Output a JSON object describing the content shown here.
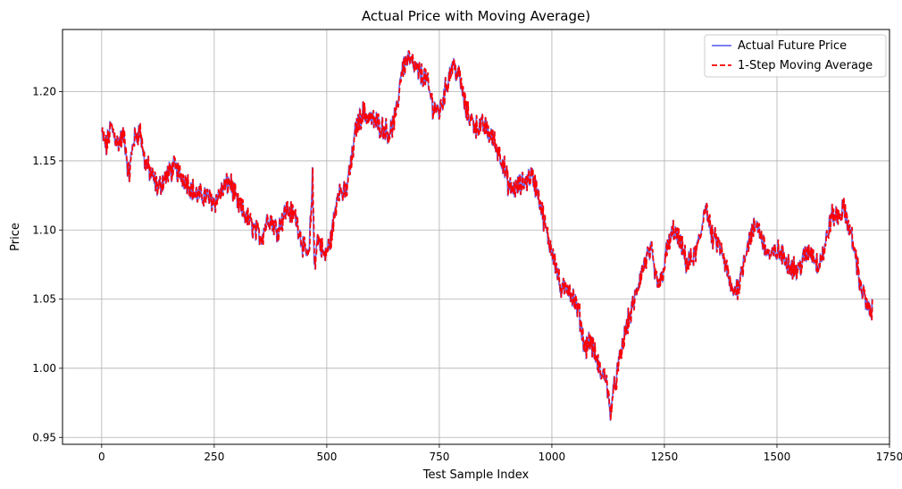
{
  "chart_data": {
    "type": "line",
    "title": "Actual Price with Moving Average)",
    "xlabel": "Test Sample Index",
    "ylabel": "Price",
    "xlim": [
      -87,
      1750
    ],
    "ylim": [
      0.945,
      1.245
    ],
    "xticks": [
      0,
      250,
      500,
      750,
      1000,
      1250,
      1500,
      1750
    ],
    "yticks": [
      0.95,
      1.0,
      1.05,
      1.1,
      1.15,
      1.2
    ],
    "grid": true,
    "legend_position": "top-right",
    "series": [
      {
        "name": "Actual Future Price",
        "color": "#6b6bf0",
        "style": "solid",
        "anchors": [
          [
            0,
            1.17
          ],
          [
            10,
            1.16
          ],
          [
            20,
            1.175
          ],
          [
            35,
            1.163
          ],
          [
            50,
            1.168
          ],
          [
            60,
            1.138
          ],
          [
            70,
            1.165
          ],
          [
            85,
            1.172
          ],
          [
            95,
            1.15
          ],
          [
            110,
            1.14
          ],
          [
            125,
            1.13
          ],
          [
            140,
            1.138
          ],
          [
            160,
            1.145
          ],
          [
            175,
            1.14
          ],
          [
            190,
            1.135
          ],
          [
            210,
            1.125
          ],
          [
            230,
            1.125
          ],
          [
            250,
            1.12
          ],
          [
            270,
            1.13
          ],
          [
            285,
            1.135
          ],
          [
            300,
            1.12
          ],
          [
            320,
            1.11
          ],
          [
            340,
            1.1
          ],
          [
            355,
            1.095
          ],
          [
            370,
            1.11
          ],
          [
            390,
            1.1
          ],
          [
            410,
            1.115
          ],
          [
            430,
            1.11
          ],
          [
            450,
            1.085
          ],
          [
            460,
            1.08
          ],
          [
            468,
            1.138
          ],
          [
            472,
            1.075
          ],
          [
            480,
            1.095
          ],
          [
            495,
            1.08
          ],
          [
            510,
            1.095
          ],
          [
            525,
            1.13
          ],
          [
            540,
            1.125
          ],
          [
            555,
            1.15
          ],
          [
            565,
            1.175
          ],
          [
            580,
            1.185
          ],
          [
            600,
            1.18
          ],
          [
            620,
            1.175
          ],
          [
            640,
            1.17
          ],
          [
            655,
            1.185
          ],
          [
            665,
            1.215
          ],
          [
            680,
            1.225
          ],
          [
            700,
            1.215
          ],
          [
            720,
            1.21
          ],
          [
            735,
            1.19
          ],
          [
            750,
            1.185
          ],
          [
            770,
            1.21
          ],
          [
            780,
            1.22
          ],
          [
            795,
            1.21
          ],
          [
            810,
            1.185
          ],
          [
            830,
            1.175
          ],
          [
            850,
            1.175
          ],
          [
            870,
            1.165
          ],
          [
            890,
            1.15
          ],
          [
            905,
            1.13
          ],
          [
            920,
            1.13
          ],
          [
            940,
            1.135
          ],
          [
            955,
            1.14
          ],
          [
            970,
            1.125
          ],
          [
            980,
            1.11
          ],
          [
            990,
            1.095
          ],
          [
            1005,
            1.08
          ],
          [
            1020,
            1.055
          ],
          [
            1035,
            1.06
          ],
          [
            1048,
            1.05
          ],
          [
            1060,
            1.04
          ],
          [
            1072,
            1.015
          ],
          [
            1085,
            1.02
          ],
          [
            1100,
            1.005
          ],
          [
            1110,
            0.995
          ],
          [
            1120,
            0.995
          ],
          [
            1128,
            0.968
          ],
          [
            1138,
            0.985
          ],
          [
            1150,
            1.005
          ],
          [
            1165,
            1.03
          ],
          [
            1180,
            1.045
          ],
          [
            1195,
            1.065
          ],
          [
            1210,
            1.08
          ],
          [
            1220,
            1.085
          ],
          [
            1230,
            1.065
          ],
          [
            1240,
            1.06
          ],
          [
            1255,
            1.085
          ],
          [
            1270,
            1.1
          ],
          [
            1285,
            1.09
          ],
          [
            1300,
            1.075
          ],
          [
            1315,
            1.08
          ],
          [
            1330,
            1.095
          ],
          [
            1340,
            1.12
          ],
          [
            1355,
            1.095
          ],
          [
            1370,
            1.09
          ],
          [
            1385,
            1.075
          ],
          [
            1400,
            1.055
          ],
          [
            1415,
            1.06
          ],
          [
            1430,
            1.085
          ],
          [
            1440,
            1.095
          ],
          [
            1455,
            1.105
          ],
          [
            1470,
            1.09
          ],
          [
            1485,
            1.08
          ],
          [
            1500,
            1.085
          ],
          [
            1515,
            1.08
          ],
          [
            1530,
            1.075
          ],
          [
            1545,
            1.07
          ],
          [
            1560,
            1.08
          ],
          [
            1575,
            1.085
          ],
          [
            1590,
            1.075
          ],
          [
            1605,
            1.085
          ],
          [
            1620,
            1.11
          ],
          [
            1635,
            1.11
          ],
          [
            1650,
            1.115
          ],
          [
            1665,
            1.095
          ],
          [
            1675,
            1.08
          ],
          [
            1685,
            1.06
          ],
          [
            1695,
            1.05
          ],
          [
            1705,
            1.04
          ],
          [
            1712,
            1.041
          ]
        ]
      },
      {
        "name": "1-Step Moving Average",
        "color": "#ff0000",
        "style": "dashed",
        "lag": 1
      }
    ]
  }
}
